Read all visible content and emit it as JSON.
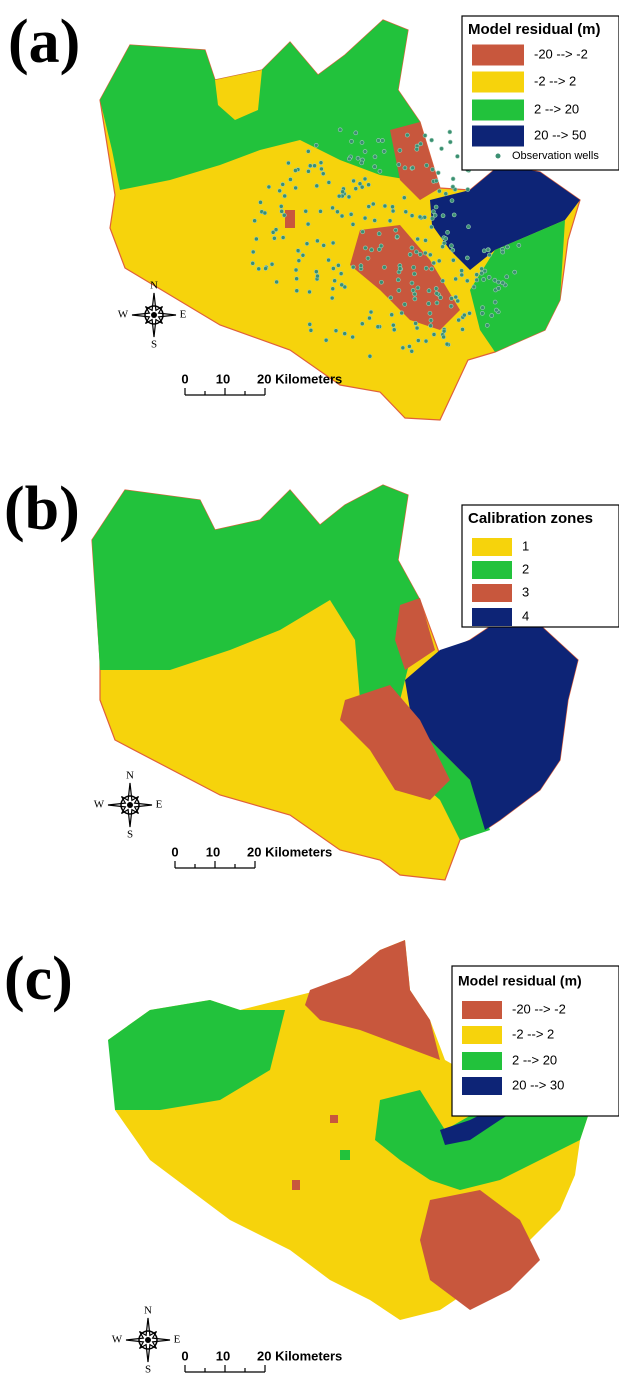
{
  "panels": [
    {
      "label": "(a)",
      "legend": {
        "title": "Model residual (m)",
        "items": [
          {
            "label": "-20 --> -2",
            "color": "#c8573d"
          },
          {
            "label": "-2 --> 2",
            "color": "#f6d30c"
          },
          {
            "label": "2 --> 20",
            "color": "#22c23c"
          },
          {
            "label": "20 --> 50",
            "color": "#0d2476"
          },
          {
            "label": "Observation wells",
            "color": "#3b8f72"
          }
        ]
      },
      "scale": [
        "0",
        "10",
        "20 Kilometers"
      ],
      "compass": [
        "N",
        "S",
        "W",
        "E"
      ]
    },
    {
      "label": "(b)",
      "legend": {
        "title": "Calibration zones",
        "items": [
          {
            "label": "1",
            "color": "#f6d30c"
          },
          {
            "label": "2",
            "color": "#22c23c"
          },
          {
            "label": "3",
            "color": "#c8573d"
          },
          {
            "label": "4",
            "color": "#0d2476"
          }
        ]
      },
      "scale": [
        "0",
        "10",
        "20 Kilometers"
      ],
      "compass": [
        "N",
        "S",
        "W",
        "E"
      ]
    },
    {
      "label": "(c)",
      "legend": {
        "title": "Model residual (m)",
        "items": [
          {
            "label": "-20 --> -2",
            "color": "#c8573d"
          },
          {
            "label": "-2 --> 2",
            "color": "#f6d30c"
          },
          {
            "label": "2 --> 20",
            "color": "#22c23c"
          },
          {
            "label": "20 --> 30",
            "color": "#0d2476"
          }
        ]
      },
      "scale": [
        "0",
        "10",
        "20 Kilometers"
      ],
      "compass": [
        "N",
        "S",
        "W",
        "E"
      ]
    }
  ]
}
